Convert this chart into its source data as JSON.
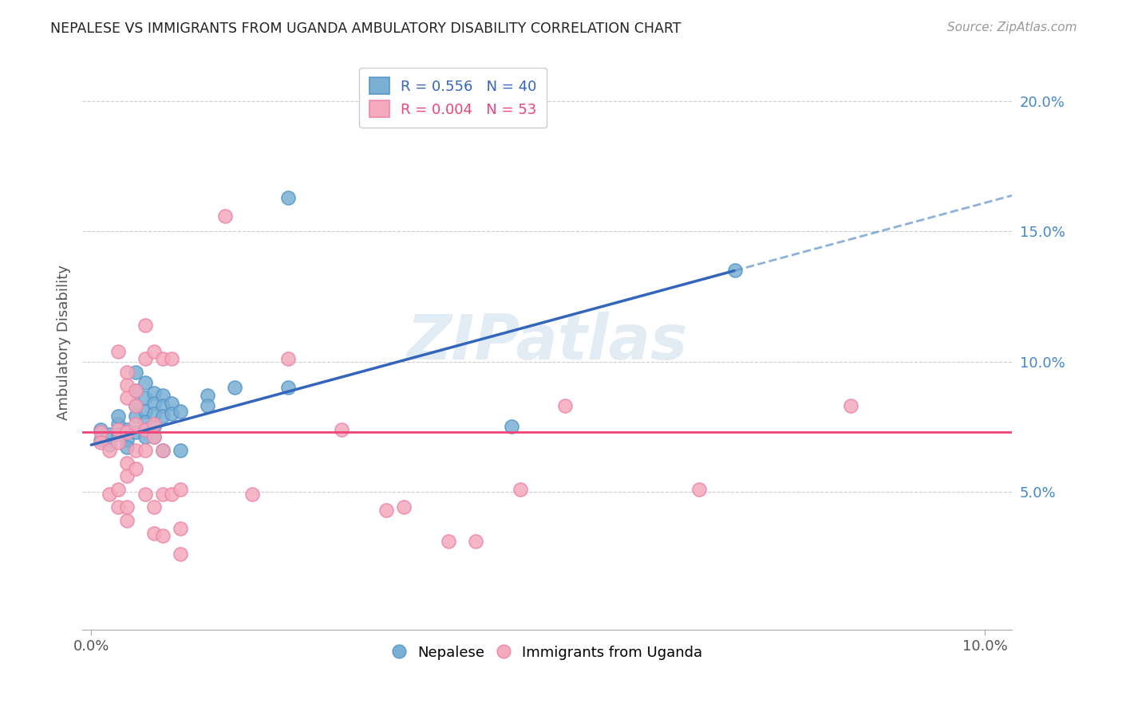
{
  "title": "NEPALESE VS IMMIGRANTS FROM UGANDA AMBULATORY DISABILITY CORRELATION CHART",
  "source": "Source: ZipAtlas.com",
  "ylabel": "Ambulatory Disability",
  "right_yticks": [
    "5.0%",
    "10.0%",
    "15.0%",
    "20.0%"
  ],
  "right_ytick_values": [
    0.05,
    0.1,
    0.15,
    0.2
  ],
  "xlim": [
    -0.001,
    0.103
  ],
  "ylim": [
    -0.003,
    0.218
  ],
  "blue_color": "#7BAFD4",
  "blue_edge": "#5599CC",
  "pink_color": "#F4AABB",
  "pink_edge": "#EE88AA",
  "trendline_blue_x0": 0.0,
  "trendline_blue_y0": 0.068,
  "trendline_blue_x1": 0.072,
  "trendline_blue_y1": 0.135,
  "trendline_blue_ext_x1": 0.103,
  "trendline_blue_ext_y1": 0.164,
  "trendline_pink_y": 0.073,
  "nepalese_points": [
    [
      0.001,
      0.07
    ],
    [
      0.001,
      0.074
    ],
    [
      0.002,
      0.072
    ],
    [
      0.002,
      0.068
    ],
    [
      0.003,
      0.076
    ],
    [
      0.003,
      0.072
    ],
    [
      0.003,
      0.079
    ],
    [
      0.004,
      0.07
    ],
    [
      0.004,
      0.074
    ],
    [
      0.004,
      0.067
    ],
    [
      0.005,
      0.096
    ],
    [
      0.005,
      0.089
    ],
    [
      0.005,
      0.083
    ],
    [
      0.005,
      0.079
    ],
    [
      0.005,
      0.073
    ],
    [
      0.006,
      0.092
    ],
    [
      0.006,
      0.086
    ],
    [
      0.006,
      0.081
    ],
    [
      0.006,
      0.077
    ],
    [
      0.006,
      0.074
    ],
    [
      0.006,
      0.071
    ],
    [
      0.007,
      0.088
    ],
    [
      0.007,
      0.084
    ],
    [
      0.007,
      0.08
    ],
    [
      0.007,
      0.075
    ],
    [
      0.007,
      0.071
    ],
    [
      0.008,
      0.087
    ],
    [
      0.008,
      0.083
    ],
    [
      0.008,
      0.079
    ],
    [
      0.008,
      0.066
    ],
    [
      0.009,
      0.084
    ],
    [
      0.009,
      0.08
    ],
    [
      0.01,
      0.081
    ],
    [
      0.01,
      0.066
    ],
    [
      0.013,
      0.087
    ],
    [
      0.013,
      0.083
    ],
    [
      0.016,
      0.09
    ],
    [
      0.022,
      0.163
    ],
    [
      0.022,
      0.09
    ],
    [
      0.047,
      0.075
    ],
    [
      0.072,
      0.135
    ]
  ],
  "uganda_points": [
    [
      0.001,
      0.073
    ],
    [
      0.001,
      0.069
    ],
    [
      0.002,
      0.066
    ],
    [
      0.002,
      0.049
    ],
    [
      0.003,
      0.104
    ],
    [
      0.003,
      0.074
    ],
    [
      0.003,
      0.069
    ],
    [
      0.003,
      0.051
    ],
    [
      0.003,
      0.044
    ],
    [
      0.004,
      0.096
    ],
    [
      0.004,
      0.091
    ],
    [
      0.004,
      0.086
    ],
    [
      0.004,
      0.073
    ],
    [
      0.004,
      0.061
    ],
    [
      0.004,
      0.056
    ],
    [
      0.004,
      0.044
    ],
    [
      0.004,
      0.039
    ],
    [
      0.005,
      0.089
    ],
    [
      0.005,
      0.083
    ],
    [
      0.005,
      0.076
    ],
    [
      0.005,
      0.066
    ],
    [
      0.005,
      0.059
    ],
    [
      0.006,
      0.114
    ],
    [
      0.006,
      0.101
    ],
    [
      0.006,
      0.074
    ],
    [
      0.006,
      0.066
    ],
    [
      0.006,
      0.049
    ],
    [
      0.007,
      0.104
    ],
    [
      0.007,
      0.076
    ],
    [
      0.007,
      0.071
    ],
    [
      0.007,
      0.044
    ],
    [
      0.007,
      0.034
    ],
    [
      0.008,
      0.101
    ],
    [
      0.008,
      0.066
    ],
    [
      0.008,
      0.049
    ],
    [
      0.008,
      0.033
    ],
    [
      0.009,
      0.101
    ],
    [
      0.009,
      0.049
    ],
    [
      0.01,
      0.051
    ],
    [
      0.01,
      0.036
    ],
    [
      0.01,
      0.026
    ],
    [
      0.015,
      0.156
    ],
    [
      0.018,
      0.049
    ],
    [
      0.022,
      0.101
    ],
    [
      0.028,
      0.074
    ],
    [
      0.033,
      0.043
    ],
    [
      0.035,
      0.044
    ],
    [
      0.04,
      0.031
    ],
    [
      0.043,
      0.031
    ],
    [
      0.048,
      0.051
    ],
    [
      0.053,
      0.083
    ],
    [
      0.068,
      0.051
    ],
    [
      0.085,
      0.083
    ]
  ],
  "watermark": "ZIPatlas",
  "background_color": "#FFFFFF",
  "grid_color": "#CCCCCC",
  "grid_style": "--"
}
